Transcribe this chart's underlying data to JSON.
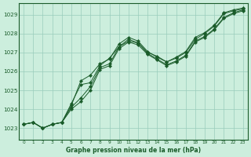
{
  "title": "Graphe pression niveau de la mer (hPa)",
  "bg_color": "#cceedd",
  "grid_color": "#99ccbb",
  "line_color": "#1a5c2a",
  "marker_color": "#1a5c2a",
  "xlim": [
    -0.5,
    23.5
  ],
  "ylim": [
    1022.4,
    1029.6
  ],
  "yticks": [
    1023,
    1024,
    1025,
    1026,
    1027,
    1028,
    1029
  ],
  "xticks": [
    0,
    1,
    2,
    3,
    4,
    5,
    6,
    7,
    8,
    9,
    10,
    11,
    12,
    13,
    14,
    15,
    16,
    17,
    18,
    19,
    20,
    21,
    22,
    23
  ],
  "series": [
    {
      "x": [
        0,
        1,
        2,
        3,
        4,
        5,
        6,
        7,
        8,
        9,
        10,
        11,
        12,
        13,
        14,
        15,
        16,
        17,
        18,
        19,
        20,
        21,
        22,
        23
      ],
      "y": [
        1023.2,
        1023.3,
        1023.0,
        1023.2,
        1023.3,
        1024.3,
        1025.3,
        1025.4,
        1026.3,
        1026.7,
        1027.3,
        1027.7,
        1027.5,
        1027.0,
        1026.8,
        1026.5,
        1026.7,
        1027.0,
        1027.7,
        1028.0,
        1028.4,
        1029.05,
        1029.2,
        1029.3
      ]
    },
    {
      "x": [
        0,
        1,
        2,
        3,
        4,
        5,
        6,
        7,
        8,
        9,
        10,
        11,
        12,
        13,
        14,
        15,
        16,
        17,
        18,
        19,
        20,
        21,
        22,
        23
      ],
      "y": [
        1023.2,
        1023.3,
        1023.0,
        1023.2,
        1023.3,
        1024.1,
        1024.6,
        1025.2,
        1026.2,
        1026.4,
        1027.3,
        1027.6,
        1027.5,
        1026.95,
        1026.65,
        1026.35,
        1026.55,
        1026.85,
        1027.6,
        1027.85,
        1028.25,
        1028.85,
        1029.1,
        1029.25
      ]
    },
    {
      "x": [
        0,
        1,
        2,
        3,
        4,
        5,
        6,
        7,
        8,
        9,
        10,
        11,
        12,
        13,
        14,
        15,
        16,
        17,
        18,
        19,
        20,
        21,
        22,
        23
      ],
      "y": [
        1023.2,
        1023.3,
        1023.0,
        1023.2,
        1023.3,
        1024.0,
        1024.4,
        1025.0,
        1026.1,
        1026.3,
        1027.2,
        1027.55,
        1027.4,
        1026.9,
        1026.6,
        1026.3,
        1026.5,
        1026.8,
        1027.55,
        1027.8,
        1028.2,
        1028.8,
        1029.05,
        1029.2
      ]
    },
    {
      "x": [
        0,
        1,
        2,
        3,
        4,
        5,
        6,
        7,
        8,
        9,
        10,
        11,
        12,
        13,
        14,
        15,
        16,
        17,
        18,
        19,
        20,
        21,
        22,
        23
      ],
      "y": [
        1023.2,
        1023.3,
        1023.0,
        1023.2,
        1023.3,
        1024.2,
        1025.5,
        1025.8,
        1026.4,
        1026.65,
        1027.45,
        1027.8,
        1027.6,
        1027.05,
        1026.75,
        1026.5,
        1026.75,
        1027.05,
        1027.8,
        1028.05,
        1028.45,
        1029.1,
        1029.25,
        1029.35
      ]
    }
  ]
}
